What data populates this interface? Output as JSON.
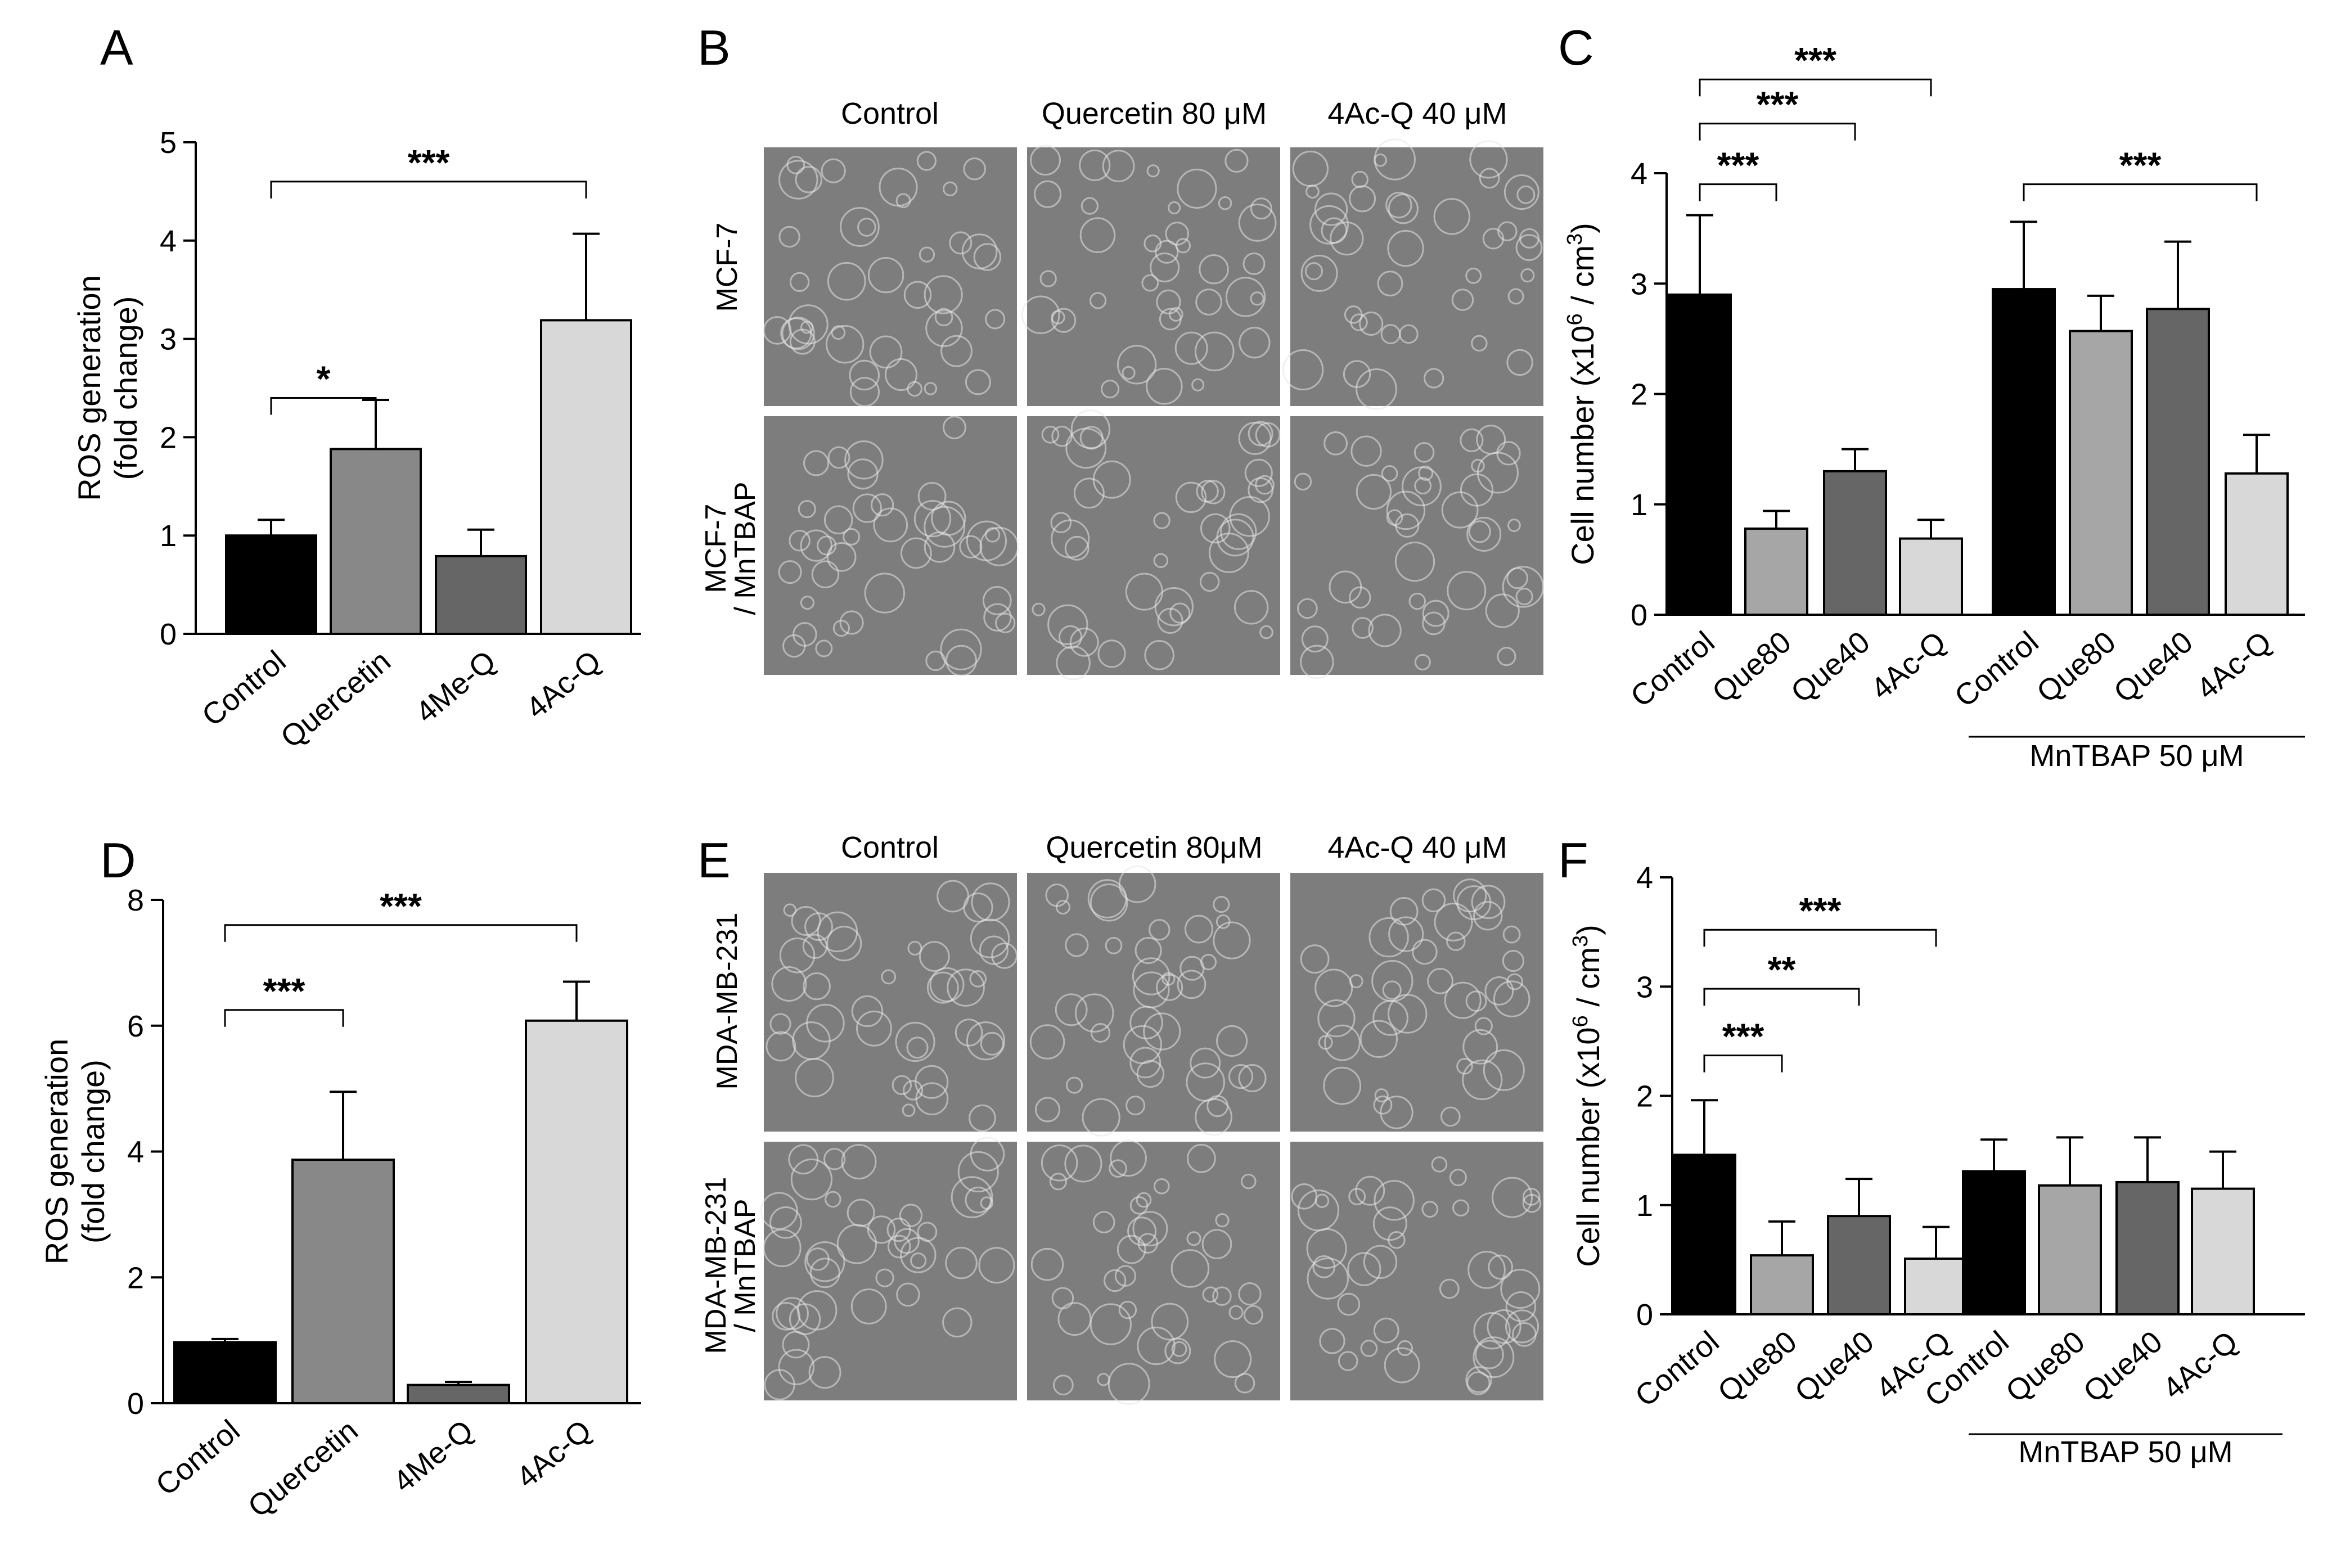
{
  "colors": {
    "black": "#000000",
    "dark_gray": "#666666",
    "mid_gray": "#888888",
    "light_gray": "#a6a6a6",
    "pale_gray": "#d8d8d8",
    "micrograph_bg": "#7d7d7d"
  },
  "panel_letters": {
    "a": "A",
    "b": "B",
    "c": "C",
    "d": "D",
    "e": "E",
    "f": "F"
  },
  "panel_b": {
    "columns": [
      "Control",
      "Quercetin 80 μM",
      "4Ac-Q 40 μM"
    ],
    "rows": [
      "MCF-7",
      "MCF-7",
      "/ MnTBAP"
    ]
  },
  "panel_e": {
    "columns": [
      "Control",
      "Quercetin 80μM",
      "4Ac-Q 40 μM"
    ],
    "rows": [
      "MDA-MB-231",
      "MDA-MB-231",
      "/ MnTBAP"
    ]
  },
  "chart_data": [
    {
      "panel": "A",
      "type": "bar",
      "categories": [
        "Control",
        "Quercetin",
        "4Me-Q",
        "4Ac-Q"
      ],
      "values": [
        1.0,
        1.88,
        0.79,
        3.19
      ],
      "errors": [
        0.16,
        0.5,
        0.27,
        0.88
      ],
      "colors": [
        "#000000",
        "#888888",
        "#666666",
        "#d8d8d8"
      ],
      "ylabel_line1": "ROS generation",
      "ylabel_line2": "(fold change)",
      "ylim": [
        0,
        5
      ],
      "yticks": [
        "0",
        "1",
        "2",
        "3",
        "4",
        "5"
      ],
      "significance": [
        {
          "from": 0,
          "to": 1,
          "label": "*",
          "level": 2.4
        },
        {
          "from": 0,
          "to": 3,
          "label": "***",
          "level": 4.6
        }
      ]
    },
    {
      "panel": "C",
      "type": "bar",
      "categories": [
        "Control",
        "Que80",
        "Que40",
        "4Ac-Q",
        "Control",
        "Que80",
        "Que40",
        "4Ac-Q"
      ],
      "values": [
        2.9,
        0.78,
        1.3,
        0.69,
        2.95,
        2.57,
        2.77,
        1.28
      ],
      "errors": [
        0.72,
        0.16,
        0.2,
        0.17,
        0.61,
        0.32,
        0.61,
        0.35
      ],
      "colors": [
        "#000000",
        "#a6a6a6",
        "#666666",
        "#d8d8d8",
        "#000000",
        "#a6a6a6",
        "#666666",
        "#d8d8d8"
      ],
      "ylabel": "Cell number (x10",
      "ylabel_exp1": "6",
      "ylabel_mid": " / cm",
      "ylabel_exp2": "3",
      "ylabel_end": ")",
      "ylim": [
        0,
        4
      ],
      "yticks": [
        "0",
        "1",
        "2",
        "3",
        "4"
      ],
      "group_label": "MnTBAP 50 μM",
      "significance": [
        {
          "from": 0,
          "to": 1,
          "label": "***",
          "level": 3.9
        },
        {
          "from": 0,
          "to": 2,
          "label": "***",
          "level": 4.45
        },
        {
          "from": 0,
          "to": 3,
          "label": "***",
          "level": 4.85
        },
        {
          "from": 4,
          "to": 7,
          "label": "***",
          "level": 3.9
        }
      ]
    },
    {
      "panel": "D",
      "type": "bar",
      "categories": [
        "Control",
        "Quercetin",
        "4Me-Q",
        "4Ac-Q"
      ],
      "values": [
        0.97,
        3.87,
        0.29,
        6.08
      ],
      "errors": [
        0.05,
        1.08,
        0.05,
        0.62
      ],
      "colors": [
        "#000000",
        "#888888",
        "#666666",
        "#d8d8d8"
      ],
      "ylabel_line1": "ROS generation",
      "ylabel_line2": "(fold change)",
      "ylim": [
        0,
        8
      ],
      "yticks": [
        "0",
        "2",
        "4",
        "6",
        "8"
      ],
      "significance": [
        {
          "from": 0,
          "to": 1,
          "label": "***",
          "level": 6.25
        },
        {
          "from": 0,
          "to": 3,
          "label": "***",
          "level": 7.6
        }
      ]
    },
    {
      "panel": "F",
      "type": "bar",
      "categories": [
        "Control",
        "Que80",
        "Que40",
        "4Ac-Q",
        "Control",
        "Que80",
        "Que40",
        "4Ac-Q"
      ],
      "values": [
        1.46,
        0.54,
        0.9,
        0.51,
        1.31,
        1.18,
        1.21,
        1.15
      ],
      "errors": [
        0.5,
        0.31,
        0.34,
        0.29,
        0.29,
        0.44,
        0.41,
        0.34
      ],
      "colors": [
        "#000000",
        "#a6a6a6",
        "#666666",
        "#d8d8d8",
        "#000000",
        "#a6a6a6",
        "#666666",
        "#d8d8d8"
      ],
      "ylabel": "Cell number (x10",
      "ylabel_exp1": "6",
      "ylabel_mid": " / cm",
      "ylabel_exp2": "3",
      "ylabel_end": ")",
      "ylim": [
        0,
        4
      ],
      "yticks": [
        "0",
        "1",
        "2",
        "3",
        "4"
      ],
      "group_label": "MnTBAP 50 μM",
      "significance": [
        {
          "from": 0,
          "to": 1,
          "label": "***",
          "level": 2.37
        },
        {
          "from": 0,
          "to": 2,
          "label": "**",
          "level": 2.98
        },
        {
          "from": 0,
          "to": 3,
          "label": "***",
          "level": 3.52
        }
      ]
    }
  ]
}
